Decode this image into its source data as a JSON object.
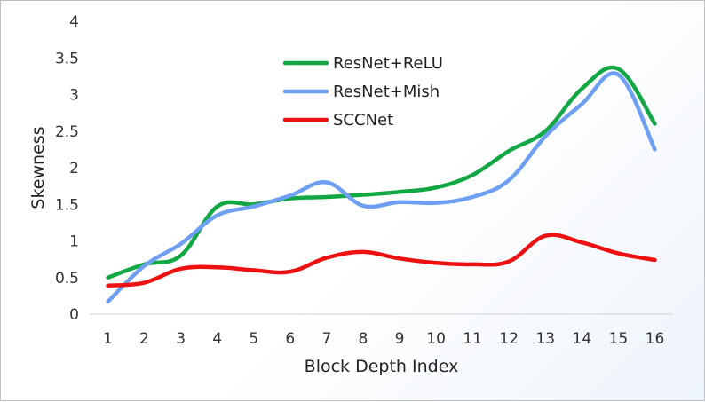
{
  "chart_data": {
    "type": "line",
    "xlabel": "Block Depth Index",
    "ylabel": "Skewness",
    "x": [
      1,
      2,
      3,
      4,
      5,
      6,
      7,
      8,
      9,
      10,
      11,
      12,
      13,
      14,
      15,
      16
    ],
    "ylim": [
      0,
      4
    ],
    "yticks": [
      "0",
      "0.5",
      "1",
      "1.5",
      "2",
      "2.5",
      "3",
      "3.5",
      "4"
    ],
    "grid": "none",
    "legend_position": "top-center",
    "series": [
      {
        "name": "ResNet+ReLU",
        "color": "#11a843",
        "values": [
          0.5,
          0.68,
          0.8,
          1.47,
          1.5,
          1.58,
          1.6,
          1.63,
          1.67,
          1.73,
          1.9,
          2.23,
          2.5,
          3.08,
          3.35,
          2.6
        ]
      },
      {
        "name": "ResNet+Mish",
        "color": "#6e9ff2",
        "values": [
          0.17,
          0.66,
          0.96,
          1.35,
          1.47,
          1.62,
          1.8,
          1.48,
          1.53,
          1.52,
          1.6,
          1.83,
          2.43,
          2.87,
          3.27,
          2.25
        ]
      },
      {
        "name": "SCCNet",
        "color": "#ee1111",
        "values": [
          0.39,
          0.43,
          0.62,
          0.64,
          0.6,
          0.58,
          0.77,
          0.85,
          0.76,
          0.7,
          0.68,
          0.72,
          1.07,
          0.98,
          0.83,
          0.74
        ]
      }
    ]
  }
}
